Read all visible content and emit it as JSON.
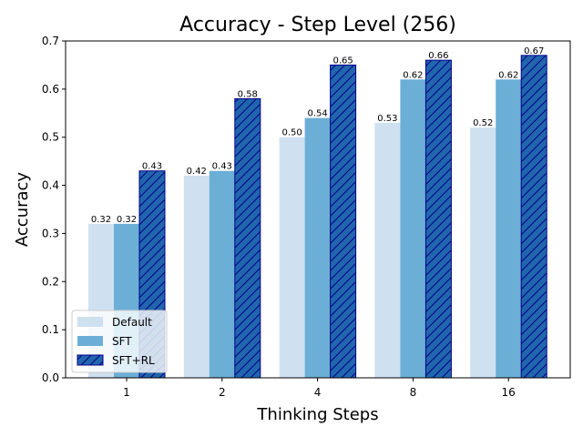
{
  "chart_data": {
    "type": "bar",
    "title": "Accuracy - Step Level (256)",
    "xlabel": "Thinking Steps",
    "ylabel": "Accuracy",
    "categories": [
      "1",
      "2",
      "4",
      "8",
      "16"
    ],
    "ylim": [
      0,
      0.7
    ],
    "yticks": [
      "0.0",
      "0.1",
      "0.2",
      "0.3",
      "0.4",
      "0.5",
      "0.6",
      "0.7"
    ],
    "grid": false,
    "legend_position": "lower-left",
    "series": [
      {
        "name": "Default",
        "values": [
          0.32,
          0.42,
          0.5,
          0.53,
          0.52
        ],
        "labels": [
          "0.32",
          "0.42",
          "0.50",
          "0.53",
          "0.52"
        ],
        "color": "#cfe0f1",
        "hatch": false
      },
      {
        "name": "SFT",
        "values": [
          0.32,
          0.43,
          0.54,
          0.62,
          0.62
        ],
        "labels": [
          "0.32",
          "0.43",
          "0.54",
          "0.62",
          "0.62"
        ],
        "color": "#6baed6",
        "hatch": false
      },
      {
        "name": "SFT+RL",
        "values": [
          0.43,
          0.58,
          0.65,
          0.66,
          0.67
        ],
        "labels": [
          "0.43",
          "0.58",
          "0.65",
          "0.66",
          "0.67"
        ],
        "color": "#2166ac",
        "edge_color": "#00008b",
        "hatch": true
      }
    ]
  }
}
